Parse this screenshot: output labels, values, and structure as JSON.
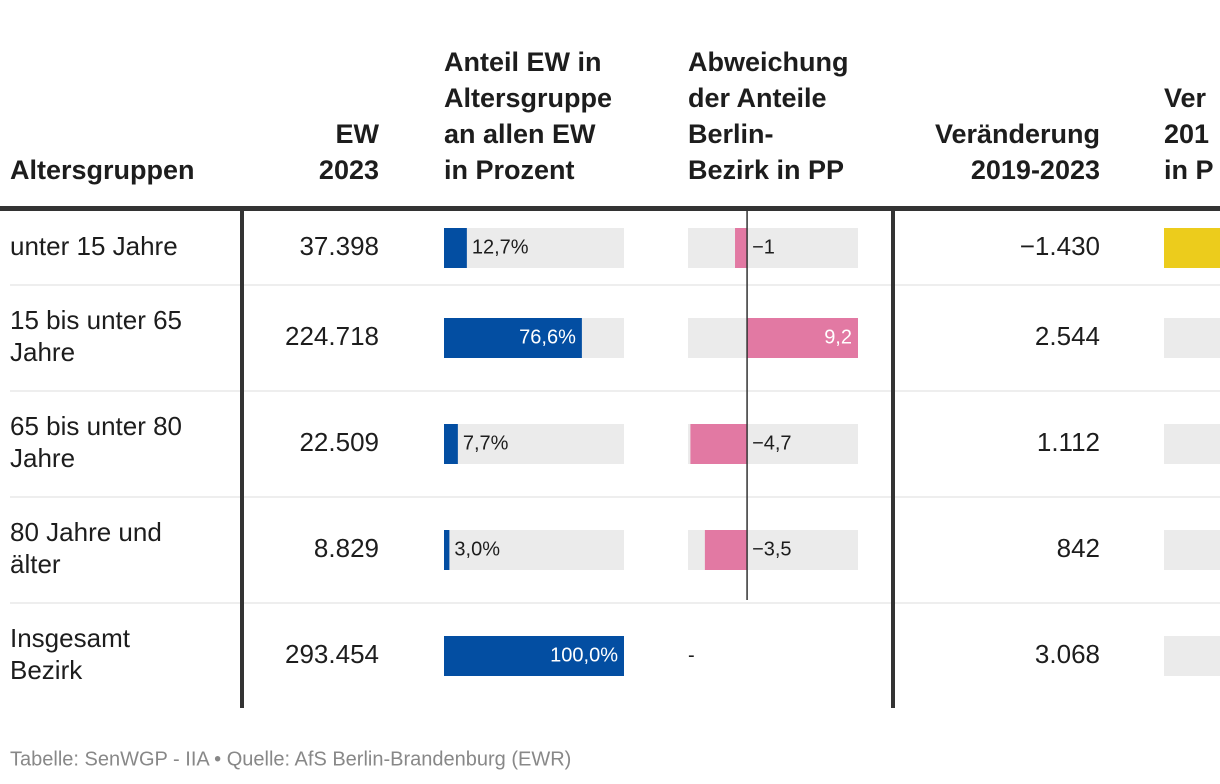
{
  "table": {
    "columns": [
      {
        "header": [
          "Altersgruppen"
        ]
      },
      {
        "header": [
          "EW",
          "2023"
        ]
      },
      {
        "header": [
          "Anteil EW in",
          "Altersgruppe",
          "an allen EW",
          "in Prozent"
        ],
        "xlim": [
          0,
          100
        ],
        "color": "#034ea2"
      },
      {
        "header": [
          "Abweichung",
          "der Anteile",
          "Berlin-",
          "Bezirk in PP"
        ],
        "xlim": [
          -4.9,
          9.2
        ],
        "color": "#e279a3"
      },
      {
        "header": [
          "Veränderung",
          "2019-2023"
        ]
      },
      {
        "header": [
          "Ver",
          "201",
          "in P"
        ]
      }
    ],
    "rows": [
      [
        [
          "unter 15 Jahre"
        ],
        "37.398",
        {
          "value": 12.7,
          "label": "12,7%"
        },
        {
          "value": -1,
          "label": "−1"
        },
        "−1.430"
      ],
      [
        [
          "15 bis unter 65",
          "Jahre"
        ],
        "224.718",
        {
          "value": 76.6,
          "label": "76,6%"
        },
        {
          "value": 9.2,
          "label": "9,2"
        },
        "2.544"
      ],
      [
        [
          "65 bis unter 80",
          "Jahre"
        ],
        "22.509",
        {
          "value": 7.7,
          "label": "7,7%"
        },
        {
          "value": -4.7,
          "label": "−4,7"
        },
        "1.112"
      ],
      [
        [
          "80 Jahre und",
          "älter"
        ],
        "8.829",
        {
          "value": 3.0,
          "label": "3,0%"
        },
        {
          "value": -3.5,
          "label": "−3,5"
        },
        "842"
      ],
      [
        [
          "Insgesamt",
          "Bezirk"
        ],
        "293.454",
        {
          "value": 100.0,
          "label": "100,0%"
        },
        "-",
        "3.068"
      ]
    ],
    "footer": "Tabelle: SenWGP - IIA • Quelle: AfS Berlin-Brandenburg (EWR)"
  }
}
